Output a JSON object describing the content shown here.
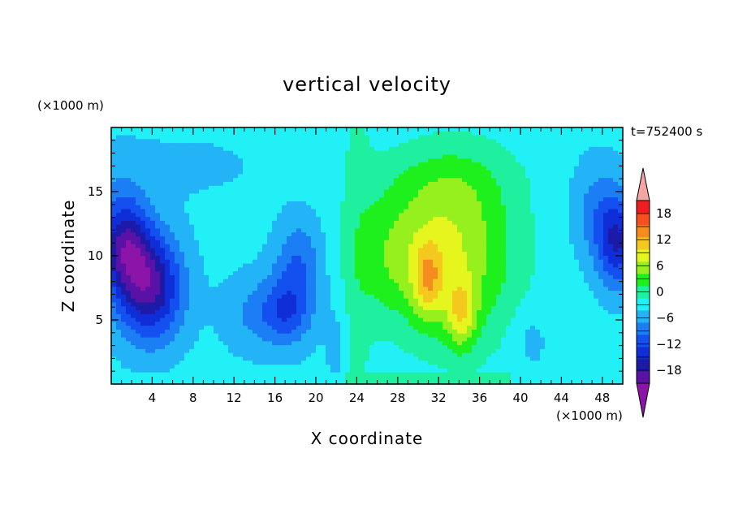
{
  "chart_data": {
    "type": "heatmap",
    "subtype": "filled-contour",
    "title": "vertical velocity",
    "xlabel": "X coordinate",
    "ylabel": "Z coordinate",
    "x_unit": "(×1000 m)",
    "y_unit": "(×1000 m)",
    "time_label": "t=752400 s",
    "xlim": [
      0,
      50
    ],
    "ylim": [
      0,
      20
    ],
    "x_ticks": [
      "4",
      "8",
      "12",
      "16",
      "20",
      "24",
      "28",
      "32",
      "36",
      "40",
      "44",
      "48"
    ],
    "y_ticks": [
      "5",
      "10",
      "15"
    ],
    "grid": false,
    "legend": "right",
    "colorbar": {
      "levels": [
        -21,
        -18,
        -15,
        -12,
        -9,
        -6,
        -3,
        0,
        3,
        6,
        9,
        12,
        15,
        18,
        21
      ],
      "colors": [
        "#5a12a6",
        "#1d1aa8",
        "#0f2ed8",
        "#1450f0",
        "#1c7ef5",
        "#22b4f7",
        "#22f0f7",
        "#1ef0a0",
        "#1ef01e",
        "#96f01e",
        "#e6f51e",
        "#f5c81e",
        "#f58c1e",
        "#f5501e",
        "#f01e1e"
      ],
      "extend_low_color": "#8c14a8",
      "extend_high_color": "#f5a3a3",
      "tick_labels": [
        "18",
        "12",
        "6",
        "0",
        "−6",
        "−12",
        "−18"
      ],
      "tick_values": [
        18,
        12,
        6,
        0,
        -6,
        -12,
        -18
      ]
    },
    "features": [
      {
        "x": 3.8,
        "z": 7.5,
        "sx": 3.2,
        "sz": 4.2,
        "value": -16
      },
      {
        "x": 1.5,
        "z": 10.5,
        "sx": 2.5,
        "sz": 3.5,
        "value": -10
      },
      {
        "x": 1.0,
        "z": 12.0,
        "sx": 2.2,
        "sz": 4.5,
        "value": -5
      },
      {
        "x": 14.5,
        "z": 5.5,
        "sx": 3.5,
        "sz": 3.0,
        "value": -5
      },
      {
        "x": 18.0,
        "z": 7.5,
        "sx": 2.5,
        "sz": 4.0,
        "value": -6
      },
      {
        "x": 17.0,
        "z": 5.5,
        "sx": 2.0,
        "sz": 2.0,
        "value": -4
      },
      {
        "x": 18.5,
        "z": 10.5,
        "sx": 2.0,
        "sz": 3.0,
        "value": -3
      },
      {
        "x": 49.5,
        "z": 11.0,
        "sx": 2.0,
        "sz": 3.5,
        "value": -12
      },
      {
        "x": 47.5,
        "z": 13.5,
        "sx": 2.5,
        "sz": 4.0,
        "value": -5
      },
      {
        "x": 27.5,
        "z": 10.0,
        "sx": 3.8,
        "sz": 5.0,
        "value": 6
      },
      {
        "x": 34.0,
        "z": 10.0,
        "sx": 6.0,
        "sz": 7.0,
        "value": 9
      },
      {
        "x": 31.0,
        "z": 8.0,
        "sx": 1.5,
        "sz": 3.0,
        "value": 9
      },
      {
        "x": 34.2,
        "z": 5.5,
        "sx": 1.5,
        "sz": 2.8,
        "value": 9
      },
      {
        "x": 33.0,
        "z": 12.0,
        "sx": 3.5,
        "sz": 4.0,
        "value": 2
      },
      {
        "x": 32.5,
        "z": 16.0,
        "sx": 7.0,
        "sz": 3.0,
        "value": 3
      },
      {
        "x": 6.5,
        "z": 17.0,
        "sx": 10.0,
        "sz": 3.0,
        "value": -1.5
      },
      {
        "x": 41.0,
        "z": 3.5,
        "sx": 1.8,
        "sz": 2.5,
        "value": -2.5
      },
      {
        "x": 22.0,
        "z": 3.0,
        "sx": 1.0,
        "sz": 3.0,
        "value": -2.5
      }
    ],
    "background_value": -2
  }
}
